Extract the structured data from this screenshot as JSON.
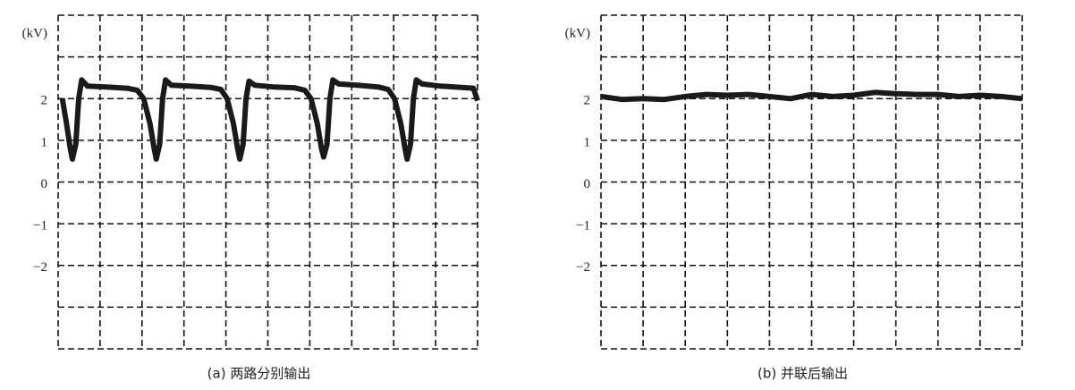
{
  "chart_data": [
    {
      "type": "line",
      "title": "(a) 两路分别输出",
      "ylabel": "(kV)",
      "xlim": [
        0,
        10
      ],
      "xgrid": [
        0,
        1,
        2,
        3,
        4,
        5,
        6,
        7,
        8,
        9,
        10
      ],
      "ylim": [
        -4,
        4
      ],
      "ygrid": [
        -4,
        -3,
        -2,
        -1,
        0,
        1,
        2,
        3,
        4
      ],
      "yticks": [
        {
          "value": -2,
          "label": "−2"
        },
        {
          "value": -1,
          "label": "−1"
        },
        0,
        1,
        2
      ],
      "grid": true,
      "color": "#1a1a1a",
      "x": [
        0.1,
        0.2,
        0.29,
        0.34,
        0.42,
        0.49,
        0.56,
        0.7,
        1.14,
        1.64,
        1.89,
        2.04,
        2.19,
        2.29,
        2.34,
        2.42,
        2.49,
        2.56,
        2.7,
        3.14,
        3.64,
        3.88,
        4.03,
        4.18,
        4.28,
        4.33,
        4.41,
        4.48,
        4.55,
        4.69,
        5.13,
        5.63,
        5.88,
        6.03,
        6.18,
        6.28,
        6.33,
        6.41,
        6.48,
        6.55,
        6.69,
        7.13,
        7.63,
        7.87,
        8.02,
        8.17,
        8.27,
        8.32,
        8.4,
        8.47,
        8.54,
        8.68,
        9.12,
        9.62,
        9.9,
        10
      ],
      "values": [
        2.0,
        1.4,
        0.8,
        0.55,
        0.9,
        2.0,
        2.45,
        2.3,
        2.28,
        2.25,
        2.2,
        2.0,
        1.4,
        0.8,
        0.55,
        0.9,
        2.0,
        2.45,
        2.32,
        2.3,
        2.27,
        2.22,
        2.0,
        1.4,
        0.8,
        0.55,
        0.9,
        2.0,
        2.42,
        2.32,
        2.28,
        2.26,
        2.2,
        2.0,
        1.4,
        0.8,
        0.6,
        0.9,
        2.0,
        2.45,
        2.35,
        2.32,
        2.28,
        2.22,
        2.0,
        1.4,
        0.8,
        0.55,
        0.9,
        2.0,
        2.45,
        2.35,
        2.3,
        2.27,
        2.25,
        1.95
      ]
    },
    {
      "type": "line",
      "title": "(b) 并联后输出",
      "ylabel": "(kV)",
      "xlim": [
        0,
        10
      ],
      "xgrid": [
        0,
        1,
        2,
        3,
        4,
        5,
        6,
        7,
        8,
        9,
        10
      ],
      "ylim": [
        -4,
        4
      ],
      "ygrid": [
        -4,
        -3,
        -2,
        -1,
        0,
        1,
        2,
        3,
        4
      ],
      "yticks": [
        {
          "value": -2,
          "label": "−2"
        },
        {
          "value": -1,
          "label": "−1"
        },
        0,
        1,
        2
      ],
      "grid": true,
      "color": "#1a1a1a",
      "x": [
        0,
        0.5,
        1,
        1.5,
        2,
        2.5,
        3,
        3.5,
        4,
        4.5,
        5,
        5.5,
        6,
        6.5,
        7,
        7.5,
        8,
        8.5,
        9,
        9.5,
        10
      ],
      "values": [
        2.05,
        1.98,
        2.0,
        1.98,
        2.05,
        2.1,
        2.08,
        2.1,
        2.05,
        2.0,
        2.1,
        2.05,
        2.08,
        2.15,
        2.12,
        2.1,
        2.1,
        2.05,
        2.08,
        2.05,
        2.0
      ]
    }
  ]
}
